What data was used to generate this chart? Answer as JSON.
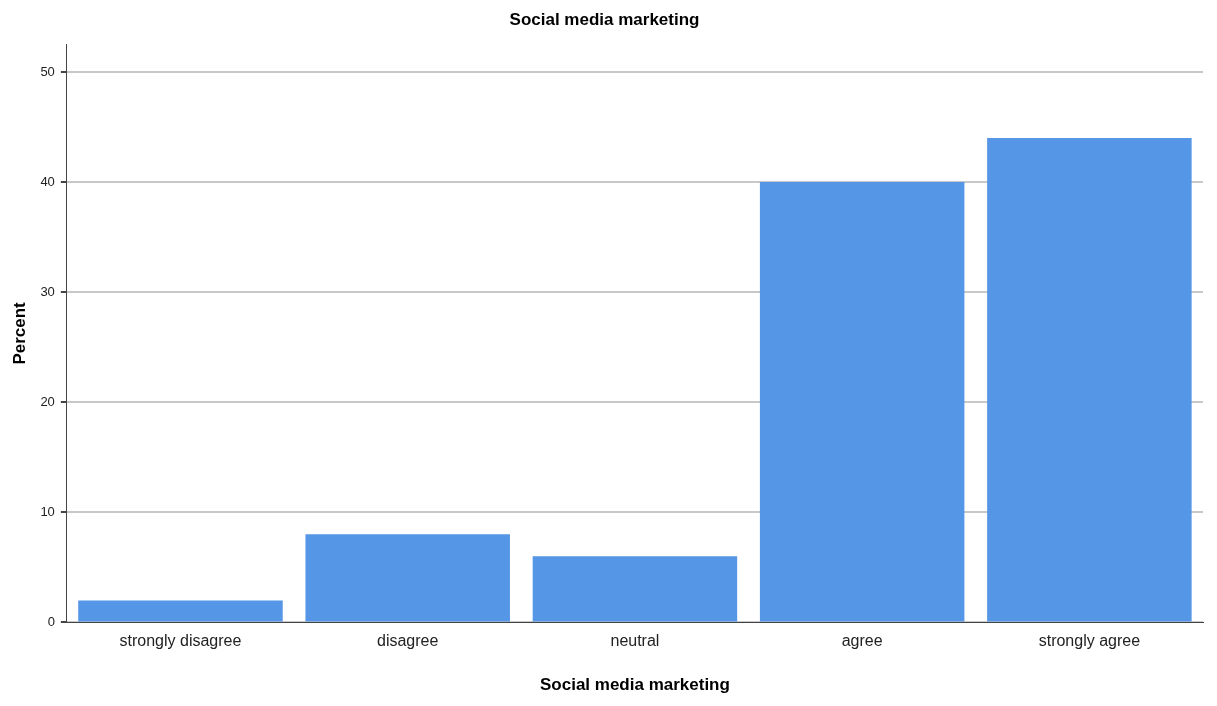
{
  "chart_data": {
    "type": "bar",
    "title": "Social media marketing",
    "xlabel": "Social media marketing",
    "ylabel": "Percent",
    "categories": [
      "strongly disagree",
      "disagree",
      "neutral",
      "agree",
      "strongly agree"
    ],
    "values": [
      2,
      8,
      6,
      40,
      44
    ],
    "color": "#5596e6",
    "ylim": [
      0,
      52.5
    ],
    "yticks": [
      0,
      10,
      20,
      30,
      40,
      50
    ],
    "grid": "y",
    "legend": false
  }
}
